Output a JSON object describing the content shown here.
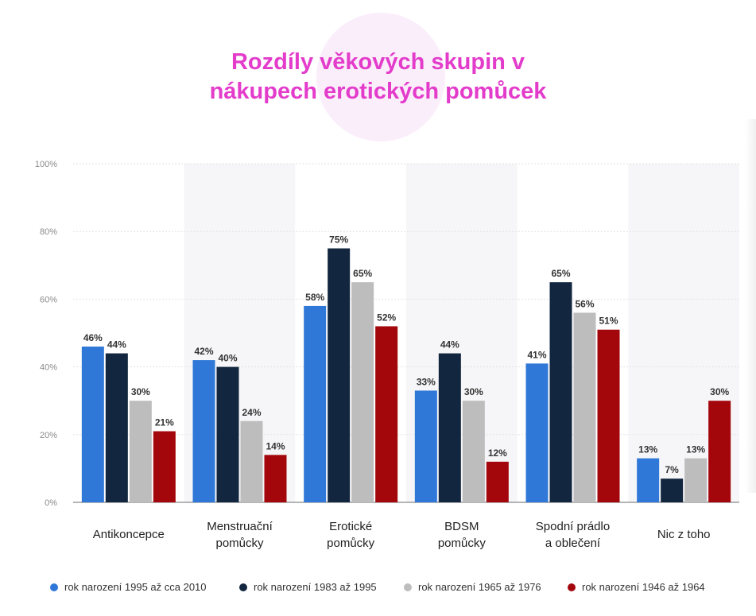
{
  "title": {
    "line1": "Rozdíly věkových skupin v",
    "line2": "nákupech erotických pomůcek"
  },
  "colors": {
    "title": "#e33ccb",
    "series": [
      "#2f78d8",
      "#13263f",
      "#bdbdbd",
      "#a3070c"
    ],
    "band": "#f6f6f8"
  },
  "chart_data": {
    "type": "bar",
    "title": "Rozdíly věkových skupin v nákupech erotických pomůcek",
    "xlabel": "",
    "ylabel": "",
    "ylim": [
      0,
      100
    ],
    "yticks": [
      "0%",
      "20%",
      "40%",
      "60%",
      "80%",
      "100%"
    ],
    "grid": true,
    "legend_position": "bottom",
    "categories": [
      "Antikoncepce",
      "Menstruační\npomůcky",
      "Erotické\npomůcky",
      "BDSM\npomůcky",
      "Spodní prádlo\na oblečení",
      "Nic z toho"
    ],
    "series": [
      {
        "name": "rok narození 1995 až cca 2010",
        "values": [
          46,
          42,
          58,
          33,
          41,
          13
        ]
      },
      {
        "name": "rok narození 1983 až 1995",
        "values": [
          44,
          40,
          75,
          44,
          65,
          7
        ]
      },
      {
        "name": "rok narození 1965 až 1976",
        "values": [
          30,
          24,
          65,
          30,
          56,
          13
        ]
      },
      {
        "name": "rok narození 1946 až 1964",
        "values": [
          21,
          14,
          52,
          12,
          51,
          30
        ]
      }
    ]
  }
}
